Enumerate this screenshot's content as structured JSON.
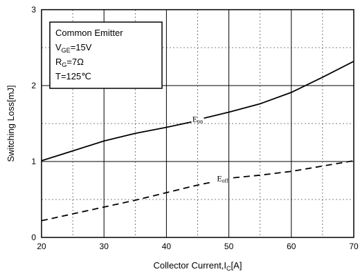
{
  "chart_data": {
    "type": "line",
    "xlabel": {
      "main": "Collector Current,I",
      "sub": "C",
      "tail": "[A]"
    },
    "ylabel": "Switching Loss[mJ]",
    "xlim": [
      20,
      70
    ],
    "ylim": [
      0,
      3
    ],
    "xticks": [
      20,
      30,
      40,
      50,
      60,
      70
    ],
    "yticks": [
      0,
      1,
      2,
      3
    ],
    "grid": {
      "major_solid": true,
      "minor_dashed": true
    },
    "conditions": [
      {
        "main": "Common Emitter",
        "sub": "",
        "tail": ""
      },
      {
        "main": "V",
        "sub": "GE",
        "tail": "=15V"
      },
      {
        "main": "R",
        "sub": "G",
        "tail": "=7Ω"
      },
      {
        "main": "T=125℃",
        "sub": "",
        "tail": ""
      }
    ],
    "series": [
      {
        "name": "E",
        "sub": "on",
        "style": "solid",
        "x": [
          20,
          25,
          30,
          35,
          40,
          44,
          46,
          50,
          55,
          60,
          65,
          70
        ],
        "y": [
          1.01,
          1.14,
          1.27,
          1.37,
          1.45,
          1.52,
          1.57,
          1.65,
          1.76,
          1.91,
          2.11,
          2.32
        ]
      },
      {
        "name": "E",
        "sub": "off",
        "style": "dashed",
        "x": [
          20,
          25,
          30,
          35,
          40,
          45,
          48,
          50,
          55,
          60,
          65,
          70
        ],
        "y": [
          0.22,
          0.31,
          0.4,
          0.49,
          0.59,
          0.69,
          0.74,
          0.78,
          0.82,
          0.87,
          0.94,
          1.01
        ]
      }
    ]
  }
}
